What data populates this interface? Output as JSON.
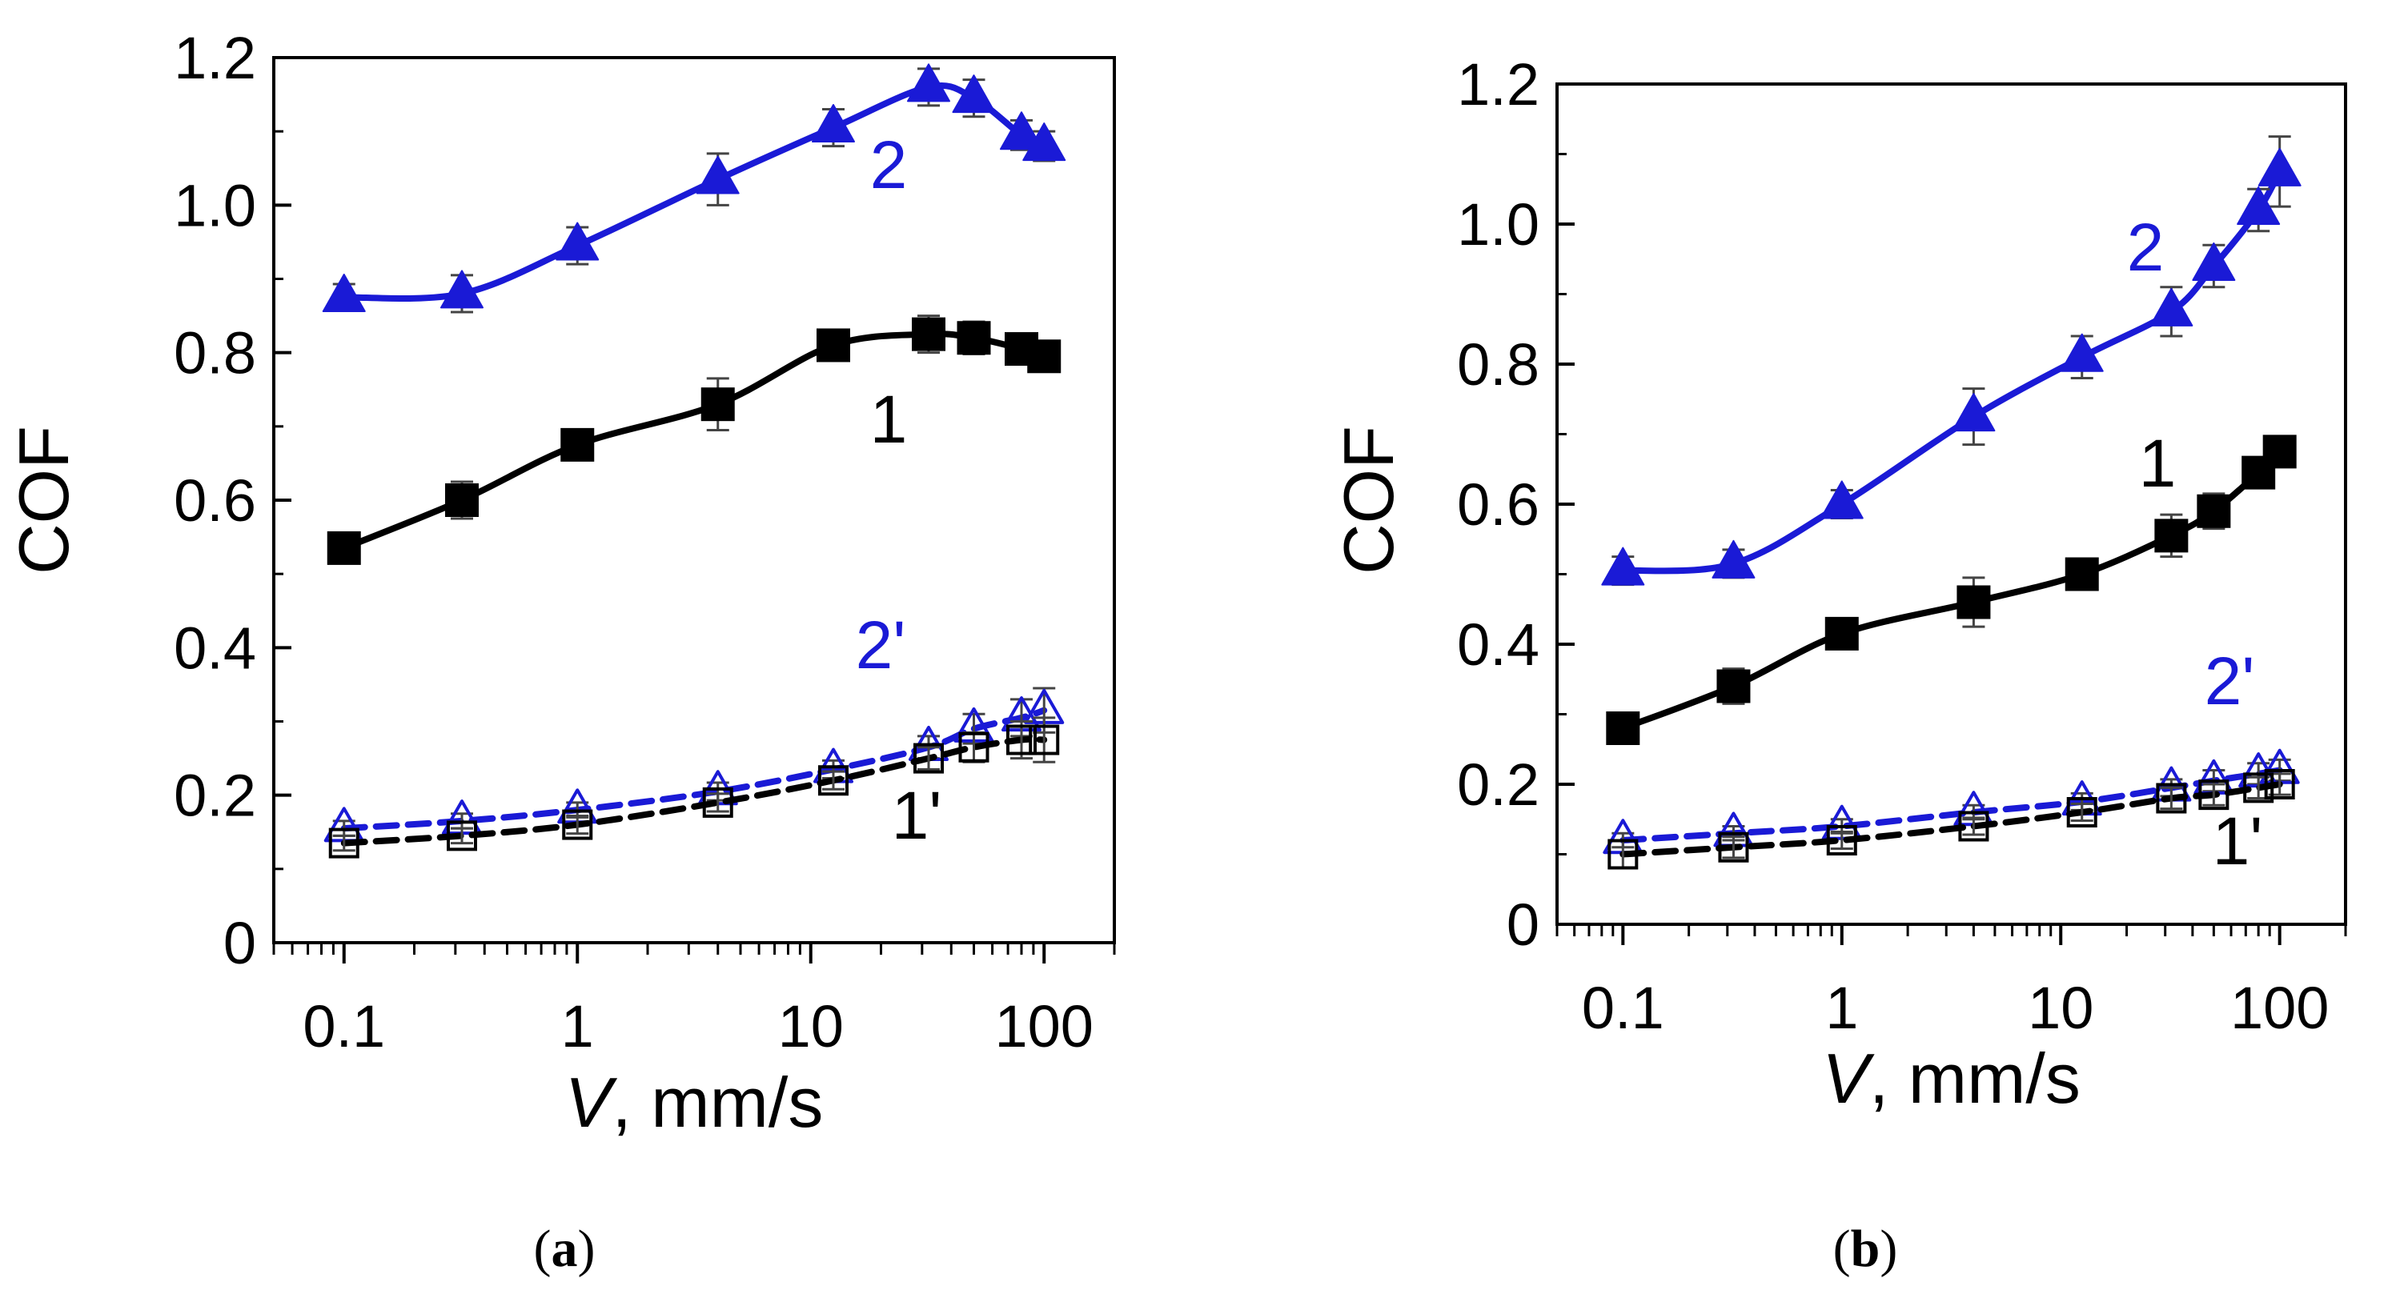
{
  "chart_data": [
    {
      "panel_label": "a",
      "caption_open": "(",
      "caption_close": ")",
      "type": "line",
      "xscale": "log",
      "xlim": [
        0.05,
        200
      ],
      "ylim": [
        0,
        1.2
      ],
      "xticks": [
        0.1,
        1,
        10,
        100
      ],
      "xtick_labels": [
        "0.1",
        "1",
        "10",
        "100"
      ],
      "yticks": [
        0,
        0.2,
        0.4,
        0.6,
        0.8,
        1.0,
        1.2
      ],
      "ytick_labels": [
        "0",
        "0.2",
        "0.4",
        "0.6",
        "0.8",
        "1.0",
        "1.2"
      ],
      "ylabel": "COF",
      "xlabel_var": "V",
      "xlabel_unit": ", mm/s",
      "grid": false,
      "x": [
        0.1,
        0.32,
        1,
        4,
        12.5,
        32,
        50,
        80,
        100
      ],
      "series": [
        {
          "name": "2",
          "label": "2",
          "color": "#1a1ad6",
          "marker": "triangle-filled",
          "line": "solid",
          "values": [
            0.875,
            0.88,
            0.945,
            1.035,
            1.105,
            1.16,
            1.145,
            1.095,
            1.08
          ],
          "errors": [
            0.018,
            0.025,
            0.025,
            0.035,
            0.025,
            0.025,
            0.025,
            0.02,
            0.02
          ]
        },
        {
          "name": "1",
          "label": "1",
          "color": "#000000",
          "marker": "square-filled",
          "line": "solid",
          "values": [
            0.535,
            0.6,
            0.675,
            0.73,
            0.81,
            0.825,
            0.82,
            0.805,
            0.795
          ],
          "errors": [
            0.012,
            0.025,
            0.02,
            0.035,
            0.018,
            0.025,
            0.022,
            0.018,
            0.015
          ]
        },
        {
          "name": "2'",
          "label": "2'",
          "color": "#1a1ad6",
          "marker": "triangle-open",
          "line": "dashed",
          "values": [
            0.155,
            0.165,
            0.18,
            0.205,
            0.235,
            0.265,
            0.29,
            0.305,
            0.315
          ],
          "errors": [
            0.01,
            0.01,
            0.01,
            0.012,
            0.012,
            0.015,
            0.02,
            0.025,
            0.03
          ]
        },
        {
          "name": "1'",
          "label": "1'",
          "color": "#000000",
          "marker": "square-open",
          "line": "dashed",
          "values": [
            0.135,
            0.145,
            0.16,
            0.19,
            0.22,
            0.25,
            0.265,
            0.275,
            0.275
          ],
          "errors": [
            0.01,
            0.01,
            0.012,
            0.012,
            0.012,
            0.015,
            0.02,
            0.025,
            0.03
          ]
        }
      ]
    },
    {
      "panel_label": "b",
      "caption_open": "(",
      "caption_close": ")",
      "type": "line",
      "xscale": "log",
      "xlim": [
        0.05,
        200
      ],
      "ylim": [
        0,
        1.2
      ],
      "xticks": [
        0.1,
        1,
        10,
        100
      ],
      "xtick_labels": [
        "0.1",
        "1",
        "10",
        "100"
      ],
      "yticks": [
        0,
        0.2,
        0.4,
        0.6,
        0.8,
        1.0,
        1.2
      ],
      "ytick_labels": [
        "0",
        "0.2",
        "0.4",
        "0.6",
        "0.8",
        "1.0",
        "1.2"
      ],
      "ylabel": "COF",
      "xlabel_var": "V",
      "xlabel_unit": ", mm/s",
      "grid": false,
      "x": [
        0.1,
        0.32,
        1,
        4,
        12.5,
        32,
        50,
        80,
        100
      ],
      "series": [
        {
          "name": "2",
          "label": "2",
          "color": "#1a1ad6",
          "marker": "triangle-filled",
          "line": "solid",
          "values": [
            0.505,
            0.515,
            0.6,
            0.725,
            0.81,
            0.875,
            0.94,
            1.02,
            1.075
          ],
          "errors": [
            0.02,
            0.02,
            0.02,
            0.04,
            0.03,
            0.035,
            0.03,
            0.03,
            0.05
          ]
        },
        {
          "name": "1",
          "label": "1",
          "color": "#000000",
          "marker": "square-filled",
          "line": "solid",
          "values": [
            0.28,
            0.34,
            0.415,
            0.46,
            0.5,
            0.555,
            0.59,
            0.645,
            0.675
          ],
          "errors": [
            0.015,
            0.025,
            0.02,
            0.035,
            0.015,
            0.03,
            0.025,
            0.015,
            0.015
          ]
        },
        {
          "name": "2'",
          "label": "2'",
          "color": "#1a1ad6",
          "marker": "triangle-open",
          "line": "dashed",
          "values": [
            0.12,
            0.13,
            0.14,
            0.16,
            0.175,
            0.195,
            0.205,
            0.215,
            0.22
          ],
          "errors": [
            0.01,
            0.01,
            0.01,
            0.01,
            0.012,
            0.012,
            0.015,
            0.015,
            0.015
          ]
        },
        {
          "name": "1'",
          "label": "1'",
          "color": "#000000",
          "marker": "square-open",
          "line": "dashed",
          "values": [
            0.1,
            0.11,
            0.12,
            0.14,
            0.16,
            0.18,
            0.185,
            0.195,
            0.2
          ],
          "errors": [
            0.02,
            0.015,
            0.012,
            0.012,
            0.012,
            0.015,
            0.015,
            0.015,
            0.015
          ]
        }
      ]
    }
  ]
}
